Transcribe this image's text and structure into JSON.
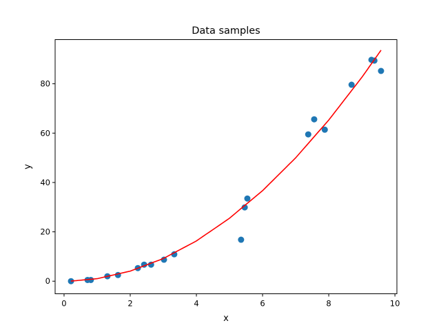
{
  "chart_data": {
    "type": "scatter",
    "title": "Data samples",
    "xlabel": "x",
    "ylabel": "y",
    "xlim": [
      -0.27,
      10.06
    ],
    "ylim": [
      -5.1,
      97.9
    ],
    "xticks": [
      0,
      2,
      4,
      6,
      8,
      10
    ],
    "yticks": [
      0,
      20,
      40,
      60,
      80
    ],
    "grid": false,
    "legend": "none",
    "series": [
      {
        "type": "scatter",
        "color": "#1f77b4",
        "x": [
          0.21,
          0.71,
          0.81,
          1.31,
          1.63,
          2.23,
          2.42,
          2.63,
          3.02,
          3.33,
          5.35,
          5.46,
          5.54,
          7.38,
          7.56,
          7.88,
          8.69,
          9.29,
          9.38,
          9.58
        ],
        "y": [
          0.0,
          0.5,
          0.5,
          2.0,
          2.5,
          5.3,
          6.7,
          6.7,
          8.7,
          10.9,
          16.8,
          29.9,
          33.5,
          59.5,
          65.6,
          61.4,
          79.6,
          89.7,
          89.4,
          85.2
        ]
      },
      {
        "type": "line",
        "color": "#ff0000",
        "x": [
          0.21,
          1.0,
          2.0,
          3.0,
          4.0,
          5.0,
          6.0,
          7.0,
          8.0,
          9.0,
          9.58
        ],
        "y": [
          0.05,
          1.02,
          4.08,
          9.18,
          16.3,
          25.5,
          36.7,
          50.0,
          65.3,
          82.6,
          93.6
        ]
      }
    ]
  }
}
